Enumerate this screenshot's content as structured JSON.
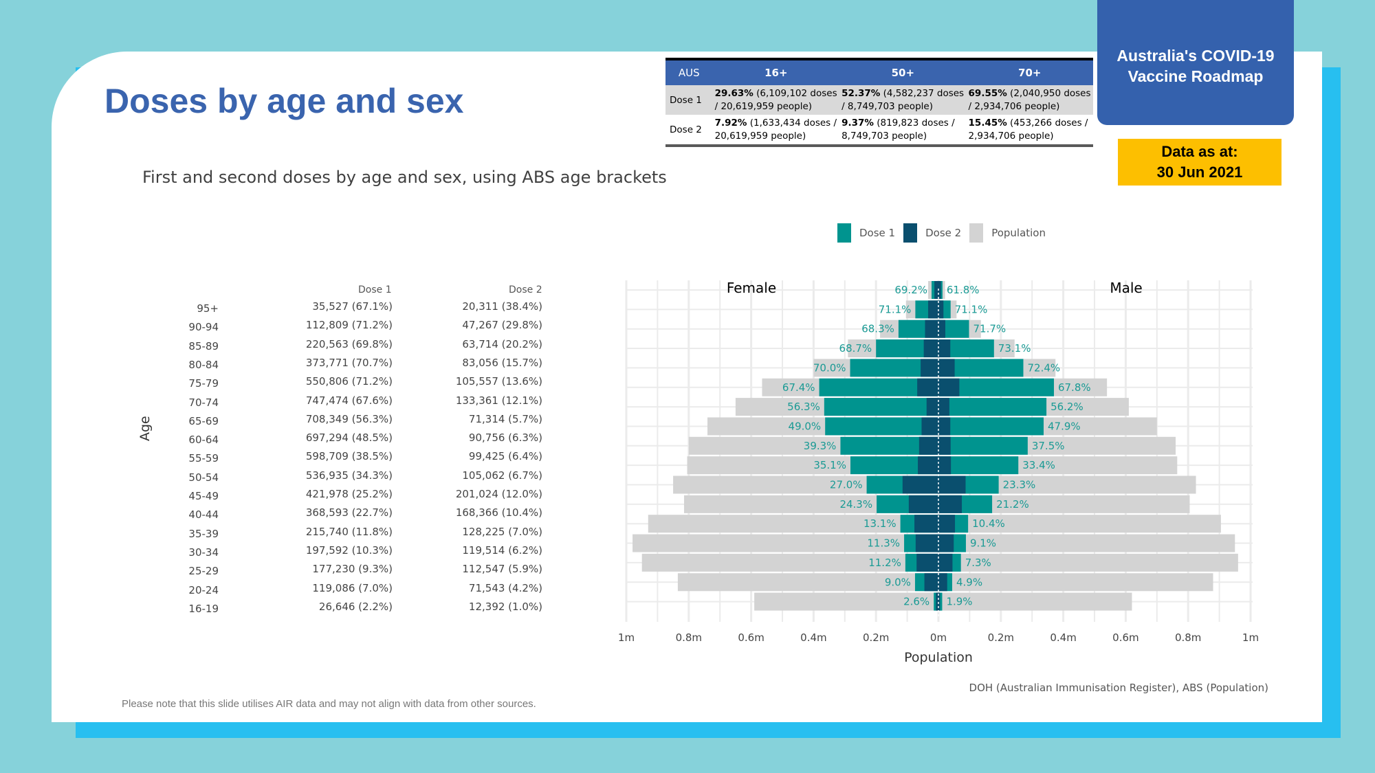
{
  "page": {
    "title": "Doses by age and sex",
    "subtitle": "First and second doses by age and sex, using ABS age brackets",
    "roadmap_line1": "Australia's COVID-19",
    "roadmap_line2": "Vaccine Roadmap",
    "data_as_at_line1": "Data as at:",
    "data_as_at_line2": "30 Jun 2021",
    "source": "DOH (Australian Immunisation Register), ABS (Population)",
    "footnote": "Please note that this slide utilises AIR data and may not align with data from other sources."
  },
  "aus_table": {
    "headers": [
      "AUS",
      "16+",
      "50+",
      "70+"
    ],
    "rows": [
      {
        "label": "Dose 1",
        "cells": [
          {
            "pct": "29.63%",
            "text": " (6,109,102 doses / 20,619,959 people)"
          },
          {
            "pct": "52.37%",
            "text": " (4,582,237 doses / 8,749,703 people)"
          },
          {
            "pct": "69.55%",
            "text": " (2,040,950 doses / 2,934,706 people)"
          }
        ]
      },
      {
        "label": "Dose 2",
        "cells": [
          {
            "pct": "7.92%",
            "text": " (1,633,434 doses / 20,619,959 people)"
          },
          {
            "pct": "9.37%",
            "text": " (819,823 doses / 8,749,703 people)"
          },
          {
            "pct": "15.45%",
            "text": " (453,266 doses / 2,934,706 people)"
          }
        ]
      }
    ]
  },
  "colors": {
    "dose1": "#00948f",
    "dose2": "#0a4f6e",
    "population": "#d3d3d3",
    "label": "#1a9a94"
  },
  "table_left": {
    "age_title": "Age",
    "dose1_header": "Dose 1",
    "dose2_header": "Dose 2",
    "ages": [
      "95+",
      "90-94",
      "85-89",
      "80-84",
      "75-79",
      "70-74",
      "65-69",
      "60-64",
      "55-59",
      "50-54",
      "45-49",
      "40-44",
      "35-39",
      "30-34",
      "25-29",
      "20-24",
      "16-19"
    ],
    "dose1": [
      "35,527 (67.1%)",
      "112,809 (71.2%)",
      "220,563 (69.8%)",
      "373,771 (70.7%)",
      "550,806 (71.2%)",
      "747,474 (67.6%)",
      "708,349 (56.3%)",
      "697,294 (48.5%)",
      "598,709 (38.5%)",
      "536,935 (34.3%)",
      "421,978 (25.2%)",
      "368,593 (22.7%)",
      "215,740 (11.8%)",
      "197,592 (10.3%)",
      "177,230 (9.3%)",
      "119,086 (7.0%)",
      "26,646 (2.2%)"
    ],
    "dose2": [
      "20,311 (38.4%)",
      "47,267 (29.8%)",
      "63,714 (20.2%)",
      "83,056 (15.7%)",
      "105,557 (13.6%)",
      "133,361 (12.1%)",
      "71,314 (5.7%)",
      "90,756 (6.3%)",
      "99,425 (6.4%)",
      "105,062 (6.7%)",
      "201,024 (12.0%)",
      "168,366 (10.4%)",
      "128,225 (7.0%)",
      "119,514 (6.2%)",
      "112,547 (5.9%)",
      "71,543 (4.2%)",
      "12,392 (1.0%)"
    ]
  },
  "chart_data": {
    "type": "bar",
    "subtype": "population-pyramid",
    "female_label": "Female",
    "male_label": "Male",
    "xlabel": "Population",
    "xlim": [
      -1000000,
      1000000
    ],
    "xticks": [
      -1000000,
      -800000,
      -600000,
      -400000,
      -200000,
      0,
      200000,
      400000,
      600000,
      800000,
      1000000
    ],
    "xtick_labels": [
      "1m",
      "0.8m",
      "0.6m",
      "0.4m",
      "0.2m",
      "0m",
      "0.2m",
      "0.4m",
      "0.6m",
      "0.8m",
      "1m"
    ],
    "legend": [
      "Dose 1",
      "Dose 2",
      "Population"
    ],
    "legend_position": "top-right",
    "categories": [
      "95+",
      "90-94",
      "85-89",
      "80-84",
      "75-79",
      "70-74",
      "65-69",
      "60-64",
      "55-59",
      "50-54",
      "45-49",
      "40-44",
      "35-39",
      "30-34",
      "25-29",
      "20-24",
      "16-19"
    ],
    "female": {
      "population": [
        33000,
        104000,
        187000,
        290000,
        400000,
        565000,
        650000,
        740000,
        800000,
        805000,
        850000,
        815000,
        930000,
        980000,
        950000,
        835000,
        590000
      ],
      "dose1": [
        22000,
        74000,
        128000,
        200000,
        283000,
        382000,
        366000,
        363000,
        314000,
        282000,
        230000,
        198000,
        122000,
        110000,
        106000,
        75000,
        15000
      ],
      "dose2": [
        13000,
        33000,
        43000,
        47000,
        57000,
        68000,
        38000,
        54000,
        62000,
        66000,
        115000,
        95000,
        77000,
        73000,
        70000,
        45000,
        8000
      ],
      "dose1_pct_label": [
        "69.2%",
        "71.1%",
        "68.3%",
        "68.7%",
        "70.0%",
        "67.4%",
        "56.3%",
        "49.0%",
        "39.3%",
        "35.1%",
        "27.0%",
        "24.3%",
        "13.1%",
        "11.3%",
        "11.2%",
        "9.0%",
        "2.6%"
      ]
    },
    "male": {
      "population": [
        21000,
        58000,
        136000,
        244000,
        375000,
        540000,
        610000,
        700000,
        760000,
        765000,
        825000,
        805000,
        905000,
        950000,
        960000,
        880000,
        620000
      ],
      "dose1": [
        13000,
        39000,
        98000,
        178000,
        272000,
        370000,
        346000,
        337000,
        286000,
        256000,
        193000,
        172000,
        95000,
        88000,
        72000,
        44000,
        12000
      ],
      "dose2": [
        8000,
        16000,
        22000,
        38000,
        52000,
        67000,
        35000,
        38000,
        39000,
        40000,
        87000,
        75000,
        53000,
        49000,
        45000,
        28000,
        5000
      ],
      "dose1_pct_label": [
        "61.8%",
        "71.1%",
        "71.7%",
        "73.1%",
        "72.4%",
        "67.8%",
        "56.2%",
        "47.9%",
        "37.5%",
        "33.4%",
        "23.3%",
        "21.2%",
        "10.4%",
        "9.1%",
        "7.3%",
        "4.9%",
        "1.9%"
      ]
    }
  }
}
